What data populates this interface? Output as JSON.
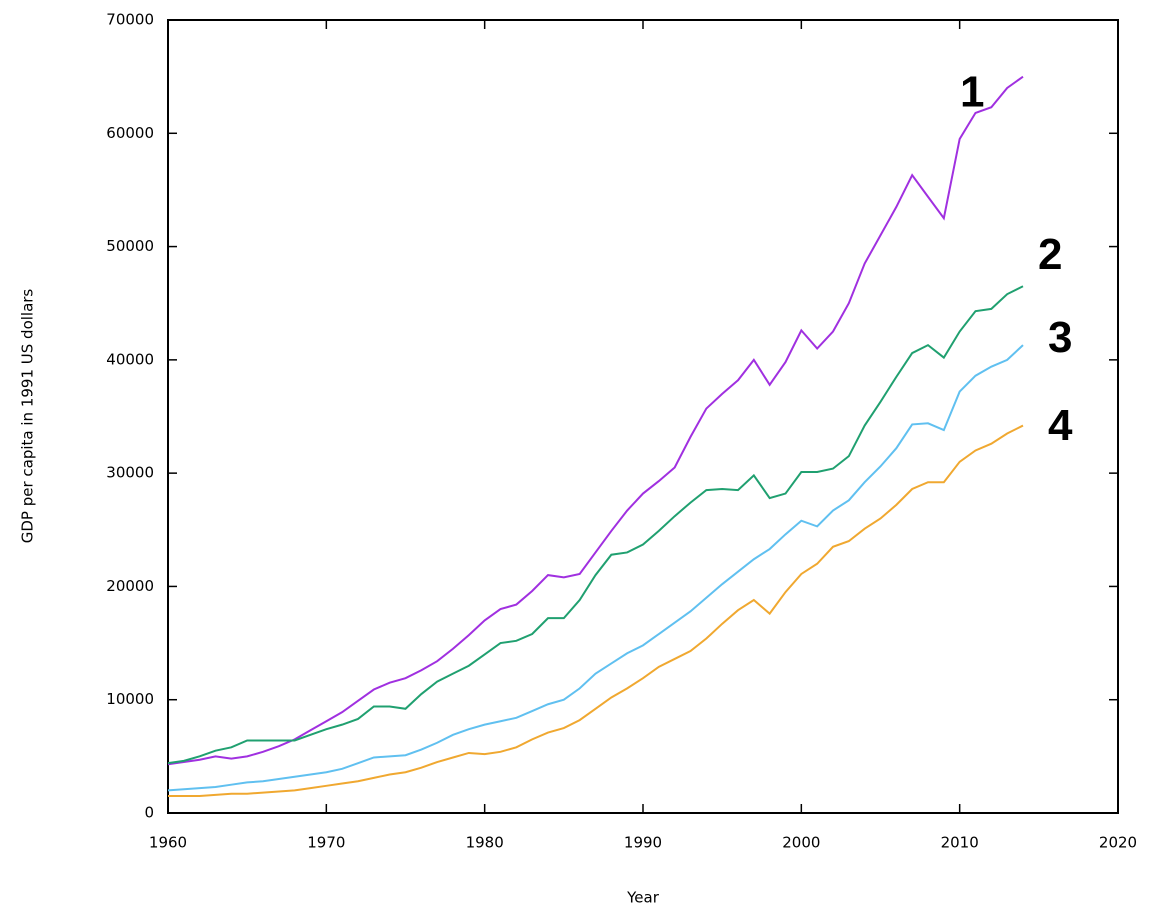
{
  "chart_data": {
    "type": "line",
    "x_label": "Year",
    "y_label": "GDP per capita in 1991 US dollars",
    "x": [
      1960,
      1961,
      1962,
      1963,
      1964,
      1965,
      1966,
      1967,
      1968,
      1969,
      1970,
      1971,
      1972,
      1973,
      1974,
      1975,
      1976,
      1977,
      1978,
      1979,
      1980,
      1981,
      1982,
      1983,
      1984,
      1985,
      1986,
      1987,
      1988,
      1989,
      1990,
      1991,
      1992,
      1993,
      1994,
      1995,
      1996,
      1997,
      1998,
      1999,
      2000,
      2001,
      2002,
      2003,
      2004,
      2005,
      2006,
      2007,
      2008,
      2009,
      2010,
      2011,
      2012,
      2013,
      2014
    ],
    "series": [
      {
        "name": "1",
        "color": "#a030e0",
        "values": [
          4300,
          4500,
          4700,
          5000,
          4800,
          5000,
          5400,
          5900,
          6500,
          7300,
          8100,
          8900,
          9900,
          10900,
          11500,
          11900,
          12600,
          13400,
          14500,
          15700,
          17000,
          18000,
          18400,
          19600,
          21000,
          20800,
          21100,
          23000,
          24900,
          26700,
          28200,
          29300,
          30500,
          33200,
          35700,
          37000,
          38200,
          40000,
          37800,
          39800,
          42600,
          41000,
          42500,
          45000,
          48500,
          51000,
          53500,
          56300,
          54400,
          52500,
          59500,
          61800,
          62300,
          64000,
          65000
        ]
      },
      {
        "name": "2",
        "color": "#20a070",
        "values": [
          4400,
          4600,
          5000,
          5500,
          5800,
          6400,
          6400,
          6400,
          6400,
          6900,
          7400,
          7800,
          8300,
          9400,
          9400,
          9200,
          10500,
          11600,
          12300,
          13000,
          14000,
          15000,
          15200,
          15800,
          17200,
          17200,
          18800,
          21000,
          22800,
          23000,
          23700,
          24900,
          26200,
          27400,
          28500,
          28600,
          28500,
          29800,
          27800,
          28200,
          30100,
          30100,
          30400,
          31500,
          34200,
          36300,
          38500,
          40600,
          41300,
          40200,
          42500,
          44300,
          44500,
          45800,
          46500
        ]
      },
      {
        "name": "3",
        "color": "#60c0f0",
        "values": [
          2000,
          2100,
          2200,
          2300,
          2500,
          2700,
          2800,
          3000,
          3200,
          3400,
          3600,
          3900,
          4400,
          4900,
          5000,
          5100,
          5600,
          6200,
          6900,
          7400,
          7800,
          8100,
          8400,
          9000,
          9600,
          10000,
          11000,
          12300,
          13200,
          14100,
          14800,
          15800,
          16800,
          17800,
          19000,
          20200,
          21300,
          22400,
          23300,
          24600,
          25800,
          25300,
          26700,
          27600,
          29200,
          30600,
          32200,
          34300,
          34400,
          33800,
          37200,
          38600,
          39400,
          40000,
          41300
        ]
      },
      {
        "name": "4",
        "color": "#f0a830",
        "values": [
          1500,
          1500,
          1500,
          1600,
          1700,
          1700,
          1800,
          1900,
          2000,
          2200,
          2400,
          2600,
          2800,
          3100,
          3400,
          3600,
          4000,
          4500,
          4900,
          5300,
          5200,
          5400,
          5800,
          6500,
          7100,
          7500,
          8200,
          9200,
          10200,
          11000,
          11900,
          12900,
          13600,
          14300,
          15400,
          16700,
          17900,
          18800,
          17600,
          19500,
          21100,
          22000,
          23500,
          24000,
          25100,
          26000,
          27200,
          28600,
          29200,
          29200,
          31000,
          32000,
          32600,
          33500,
          34200
        ]
      }
    ],
    "xlim": [
      1960,
      2020
    ],
    "xticks": [
      1960,
      1970,
      1980,
      1990,
      2000,
      2010,
      2020
    ],
    "ylim": [
      0,
      70000
    ],
    "yticks": [
      0,
      10000,
      20000,
      30000,
      40000,
      50000,
      60000,
      70000
    ]
  }
}
